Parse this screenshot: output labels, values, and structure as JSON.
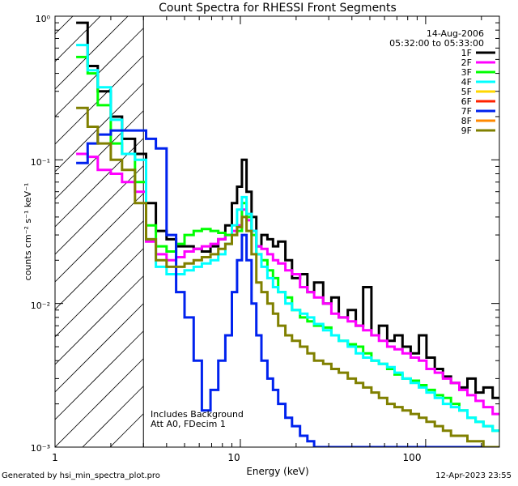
{
  "chart_data": {
    "type": "line",
    "title": "Count Spectra for RHESSI Front Segments",
    "xlabel": "Energy (keV)",
    "ylabel": "counts cm⁻² s⁻¹ keV⁻¹",
    "xscale": "log",
    "yscale": "log",
    "xlim": [
      1,
      250
    ],
    "ylim": [
      0.001,
      1
    ],
    "x_ticks": [
      {
        "value": 1,
        "label": "1"
      },
      {
        "value": 10,
        "label": "10"
      },
      {
        "value": 100,
        "label": "100"
      }
    ],
    "y_ticks": [
      {
        "value": 1,
        "label": "10⁰"
      },
      {
        "value": 0.1,
        "label": "10⁻¹"
      },
      {
        "value": 0.01,
        "label": "10⁻²"
      },
      {
        "value": 0.001,
        "label": "10⁻³"
      }
    ],
    "shaded_region_xlim": [
      1,
      3
    ],
    "legend": {
      "position": "top-right",
      "date": "14-Aug-2006",
      "time_range": "05:32:00 to 05:33:00"
    },
    "annotation_lines": [
      "Includes Background",
      "Att A0, FDecim 1"
    ],
    "series": [
      {
        "name": "1F",
        "color": "#000000",
        "x": [
          1.3,
          1.5,
          1.7,
          2.0,
          2.3,
          2.7,
          3.1,
          3.5,
          4.0,
          4.5,
          5.0,
          5.6,
          6.2,
          6.9,
          7.6,
          8.3,
          9.0,
          9.6,
          10.2,
          10.8,
          11.5,
          12.2,
          13.0,
          14.0,
          15.0,
          16.0,
          17.5,
          19.0,
          21.0,
          23.0,
          25.0,
          28.0,
          31.0,
          34.0,
          38.0,
          42.0,
          46.0,
          51.0,
          56.0,
          62.0,
          68.0,
          75.0,
          83.0,
          92.0,
          101.0,
          112.0,
          124.0,
          137.0,
          152.0,
          168.0,
          186.0,
          205.0,
          230.0
        ],
        "y": [
          0.9,
          0.45,
          0.3,
          0.2,
          0.14,
          0.11,
          0.05,
          0.032,
          0.028,
          0.025,
          0.025,
          0.024,
          0.023,
          0.025,
          0.028,
          0.035,
          0.05,
          0.065,
          0.1,
          0.06,
          0.04,
          0.025,
          0.03,
          0.028,
          0.025,
          0.027,
          0.02,
          0.015,
          0.016,
          0.012,
          0.014,
          0.01,
          0.011,
          0.008,
          0.009,
          0.007,
          0.013,
          0.006,
          0.007,
          0.0055,
          0.006,
          0.005,
          0.0045,
          0.006,
          0.0042,
          0.0035,
          0.0031,
          0.0028,
          0.0026,
          0.003,
          0.0024,
          0.0026,
          0.0022
        ]
      },
      {
        "name": "2F",
        "color": "#ff00ff",
        "x": [
          1.3,
          1.5,
          1.7,
          2.0,
          2.3,
          2.7,
          3.1,
          3.5,
          4.0,
          4.5,
          5.0,
          5.6,
          6.2,
          6.9,
          7.6,
          8.3,
          9.0,
          9.6,
          10.2,
          10.8,
          11.5,
          12.2,
          13.0,
          14.0,
          15.0,
          16.0,
          17.5,
          19.0,
          21.0,
          23.0,
          25.0,
          28.0,
          31.0,
          34.0,
          38.0,
          42.0,
          46.0,
          51.0,
          56.0,
          62.0,
          68.0,
          75.0,
          83.0,
          92.0,
          101.0,
          112.0,
          124.0,
          137.0,
          152.0,
          168.0,
          186.0,
          205.0,
          230.0
        ],
        "y": [
          0.11,
          0.105,
          0.085,
          0.08,
          0.07,
          0.06,
          0.027,
          0.022,
          0.02,
          0.021,
          0.023,
          0.024,
          0.025,
          0.026,
          0.028,
          0.03,
          0.032,
          0.035,
          0.045,
          0.038,
          0.032,
          0.025,
          0.024,
          0.022,
          0.02,
          0.019,
          0.017,
          0.016,
          0.013,
          0.012,
          0.011,
          0.01,
          0.0085,
          0.008,
          0.0075,
          0.007,
          0.0065,
          0.006,
          0.0055,
          0.005,
          0.0048,
          0.0045,
          0.0042,
          0.004,
          0.0035,
          0.0033,
          0.003,
          0.0028,
          0.0025,
          0.0023,
          0.0021,
          0.0019,
          0.0017
        ]
      },
      {
        "name": "3F",
        "color": "#00ff00",
        "x": [
          1.3,
          1.5,
          1.7,
          2.0,
          2.3,
          2.7,
          3.1,
          3.5,
          4.0,
          4.5,
          5.0,
          5.6,
          6.2,
          6.9,
          7.6,
          8.3,
          9.0,
          9.6,
          10.2,
          10.8,
          11.5,
          12.2,
          13.0,
          14.0,
          15.0,
          16.0,
          17.5,
          19.0,
          21.0,
          23.0,
          25.0,
          28.0,
          31.0,
          34.0,
          38.0,
          42.0,
          46.0,
          51.0,
          56.0,
          62.0,
          68.0,
          75.0,
          83.0,
          92.0,
          101.0,
          112.0,
          124.0,
          137.0,
          152.0,
          168.0,
          186.0,
          205.0,
          230.0
        ],
        "y": [
          0.52,
          0.4,
          0.24,
          0.13,
          0.11,
          0.07,
          0.035,
          0.025,
          0.023,
          0.026,
          0.03,
          0.032,
          0.033,
          0.032,
          0.031,
          0.03,
          0.03,
          0.032,
          0.05,
          0.04,
          0.03,
          0.022,
          0.02,
          0.017,
          0.015,
          0.012,
          0.011,
          0.009,
          0.008,
          0.0075,
          0.007,
          0.0068,
          0.006,
          0.0055,
          0.0052,
          0.005,
          0.0045,
          0.004,
          0.0038,
          0.0035,
          0.0032,
          0.003,
          0.0029,
          0.0027,
          0.0025,
          0.0023,
          0.0022,
          0.002,
          0.0018,
          0.0016,
          0.0015,
          0.0014,
          0.0013
        ]
      },
      {
        "name": "4F",
        "color": "#00ffff",
        "x": [
          1.3,
          1.5,
          1.7,
          2.0,
          2.3,
          2.7,
          3.1,
          3.5,
          4.0,
          4.5,
          5.0,
          5.6,
          6.2,
          6.9,
          7.6,
          8.3,
          9.0,
          9.6,
          10.2,
          10.8,
          11.5,
          12.2,
          13.0,
          14.0,
          15.0,
          16.0,
          17.5,
          19.0,
          21.0,
          23.0,
          25.0,
          28.0,
          31.0,
          34.0,
          38.0,
          42.0,
          46.0,
          51.0,
          56.0,
          62.0,
          68.0,
          75.0,
          83.0,
          92.0,
          101.0,
          112.0,
          124.0,
          137.0,
          152.0,
          168.0,
          186.0,
          205.0,
          230.0
        ],
        "y": [
          0.63,
          0.42,
          0.32,
          0.19,
          0.11,
          0.1,
          0.028,
          0.018,
          0.016,
          0.016,
          0.017,
          0.018,
          0.019,
          0.02,
          0.022,
          0.026,
          0.035,
          0.045,
          0.055,
          0.042,
          0.032,
          0.022,
          0.018,
          0.015,
          0.013,
          0.012,
          0.01,
          0.009,
          0.0085,
          0.008,
          0.0072,
          0.0065,
          0.006,
          0.0055,
          0.005,
          0.0045,
          0.0042,
          0.004,
          0.0038,
          0.0036,
          0.0033,
          0.003,
          0.0028,
          0.0026,
          0.0024,
          0.0022,
          0.002,
          0.0019,
          0.0018,
          0.0016,
          0.0015,
          0.0014,
          0.0013
        ]
      },
      {
        "name": "5F",
        "color": "#ffd700",
        "x": [],
        "y": []
      },
      {
        "name": "6F",
        "color": "#ff2200",
        "x": [],
        "y": []
      },
      {
        "name": "7F",
        "color": "#0022ee",
        "x": [
          1.3,
          1.5,
          1.7,
          2.0,
          2.3,
          2.7,
          3.1,
          3.5,
          4.0,
          4.5,
          5.0,
          5.6,
          6.2,
          6.9,
          7.6,
          8.3,
          9.0,
          9.6,
          10.2,
          10.8,
          11.5,
          12.2,
          13.0,
          14.0,
          15.0,
          16.0,
          17.5,
          19.0,
          21.0,
          23.0,
          25.0,
          28.0,
          31.0,
          34.0,
          38.0,
          42.0,
          46.0,
          51.0,
          56.0,
          62.0,
          68.0,
          75.0,
          83.0,
          92.0,
          101.0,
          112.0,
          124.0,
          137.0,
          152.0,
          168.0,
          186.0,
          205.0,
          230.0
        ],
        "y": [
          0.095,
          0.13,
          0.15,
          0.16,
          0.16,
          0.16,
          0.14,
          0.12,
          0.03,
          0.012,
          0.008,
          0.004,
          0.0018,
          0.0025,
          0.004,
          0.006,
          0.012,
          0.02,
          0.03,
          0.02,
          0.01,
          0.006,
          0.004,
          0.003,
          0.0025,
          0.002,
          0.0016,
          0.0014,
          0.0012,
          0.0011,
          0.001,
          0.001,
          0.001,
          0.001,
          0.001,
          0.001,
          0.001,
          0.001,
          0.001,
          0.001,
          0.001,
          0.001,
          0.001,
          0.001,
          0.001,
          0.001,
          0.001,
          0.001,
          0.001,
          0.001,
          0.001,
          0.001,
          0.001
        ]
      },
      {
        "name": "8F",
        "color": "#ff8800",
        "x": [],
        "y": []
      },
      {
        "name": "9F",
        "color": "#808000",
        "x": [
          1.3,
          1.5,
          1.7,
          2.0,
          2.3,
          2.7,
          3.1,
          3.5,
          4.0,
          4.5,
          5.0,
          5.6,
          6.2,
          6.9,
          7.6,
          8.3,
          9.0,
          9.6,
          10.2,
          10.8,
          11.5,
          12.2,
          13.0,
          14.0,
          15.0,
          16.0,
          17.5,
          19.0,
          21.0,
          23.0,
          25.0,
          28.0,
          31.0,
          34.0,
          38.0,
          42.0,
          46.0,
          51.0,
          56.0,
          62.0,
          68.0,
          75.0,
          83.0,
          92.0,
          101.0,
          112.0,
          124.0,
          137.0,
          152.0,
          168.0,
          186.0,
          205.0,
          230.0
        ],
        "y": [
          0.23,
          0.17,
          0.13,
          0.1,
          0.085,
          0.05,
          0.028,
          0.02,
          0.018,
          0.018,
          0.019,
          0.02,
          0.021,
          0.022,
          0.024,
          0.026,
          0.03,
          0.034,
          0.04,
          0.032,
          0.022,
          0.014,
          0.012,
          0.01,
          0.0085,
          0.007,
          0.006,
          0.0055,
          0.005,
          0.0045,
          0.004,
          0.0038,
          0.0035,
          0.0033,
          0.003,
          0.0028,
          0.0026,
          0.0024,
          0.0022,
          0.002,
          0.0019,
          0.0018,
          0.0017,
          0.0016,
          0.0015,
          0.0014,
          0.0013,
          0.0012,
          0.0012,
          0.0011,
          0.0011,
          0.001,
          0.001
        ]
      }
    ]
  },
  "footer": {
    "generated_by": "Generated by hsi_min_spectra_plot.pro",
    "timestamp": "12-Apr-2023 23:55"
  }
}
